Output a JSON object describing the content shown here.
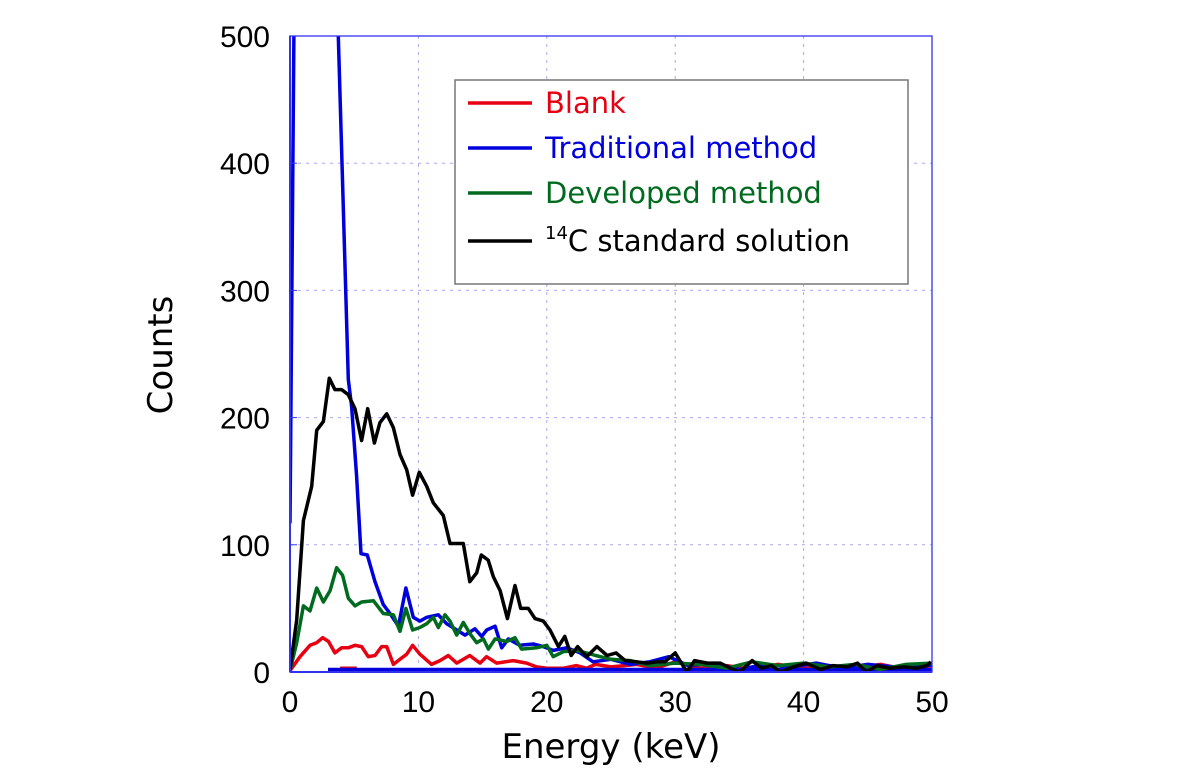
{
  "chart_data": {
    "type": "line",
    "title": "",
    "xlabel": "Energy (keV)",
    "ylabel": "Counts",
    "xlim": [
      0,
      50
    ],
    "ylim": [
      0,
      500
    ],
    "xticks": [
      "0",
      "10",
      "20",
      "30",
      "40",
      "50"
    ],
    "yticks": [
      "0",
      "100",
      "200",
      "300",
      "400",
      "500"
    ],
    "grid": true,
    "legend_position": "top-right",
    "axis_color": "#3333ee",
    "grid_color": "#aaaaee",
    "series": [
      {
        "name": "Blank",
        "color": "#e60012",
        "points": [
          [
            0,
            1
          ],
          [
            0.78,
            12
          ],
          [
            1.56,
            21
          ],
          [
            2.08,
            23
          ],
          [
            2.55,
            27
          ],
          [
            3.0,
            24
          ],
          [
            3.5,
            15
          ],
          [
            4.02,
            19
          ],
          [
            4.54,
            19
          ],
          [
            5.06,
            21
          ],
          [
            5.58,
            20
          ],
          [
            6.1,
            12
          ],
          [
            6.62,
            13
          ],
          [
            7.14,
            20
          ],
          [
            7.53,
            20
          ],
          [
            8.05,
            6
          ],
          [
            8.57,
            10
          ],
          [
            9.09,
            14
          ],
          [
            9.55,
            21
          ],
          [
            10.12,
            14
          ],
          [
            11.03,
            6
          ],
          [
            11.68,
            9
          ],
          [
            12.33,
            13
          ],
          [
            12.98,
            7
          ],
          [
            14.0,
            13
          ],
          [
            14.8,
            7
          ],
          [
            15.3,
            12
          ],
          [
            16.1,
            7
          ],
          [
            17.39,
            9
          ],
          [
            18.43,
            7
          ],
          [
            19.2,
            4
          ],
          [
            20.0,
            3
          ],
          [
            21.3,
            3
          ],
          [
            22.3,
            5
          ],
          [
            23.1,
            3
          ],
          [
            23.8,
            6
          ],
          [
            25,
            4
          ],
          [
            27,
            6
          ],
          [
            28.5,
            3
          ],
          [
            30,
            8
          ],
          [
            32,
            3
          ],
          [
            34,
            5
          ],
          [
            36,
            2
          ],
          [
            38,
            6
          ],
          [
            40,
            3
          ],
          [
            42,
            5
          ],
          [
            44,
            3
          ],
          [
            46,
            6
          ],
          [
            48,
            2
          ],
          [
            50,
            5
          ],
          null,
          [
            3.9,
            3
          ],
          [
            5.2,
            3
          ]
        ]
      },
      {
        "name": "Traditional method",
        "color": "#0000dd",
        "points": [
          [
            0,
            117
          ],
          [
            0.3,
            500
          ],
          null,
          [
            3.76,
            500
          ],
          [
            4.54,
            230
          ],
          [
            4.8,
            209
          ],
          [
            5.19,
            154
          ],
          [
            5.53,
            93
          ],
          [
            6.02,
            92
          ],
          [
            6.62,
            71
          ],
          [
            7.27,
            53
          ],
          [
            7.79,
            46
          ],
          [
            8.44,
            36
          ],
          [
            9.03,
            66
          ],
          [
            9.6,
            43
          ],
          [
            10.12,
            40
          ],
          [
            10.65,
            43
          ],
          [
            11.55,
            45
          ],
          [
            12.2,
            38
          ],
          [
            12.98,
            33
          ],
          [
            13.63,
            29
          ],
          [
            14.4,
            34
          ],
          [
            14.93,
            28
          ],
          [
            15.32,
            33
          ],
          [
            15.97,
            36
          ],
          [
            16.49,
            19
          ],
          [
            17.0,
            26
          ],
          [
            17.9,
            21
          ],
          [
            18.95,
            22
          ],
          [
            19.73,
            20
          ],
          [
            20.5,
            17
          ],
          [
            21.55,
            19
          ],
          [
            22.6,
            15
          ],
          [
            23.6,
            8
          ],
          [
            25,
            10
          ],
          [
            26.5,
            6
          ],
          [
            28,
            8
          ],
          [
            29.5,
            12
          ],
          [
            31,
            5
          ],
          [
            33,
            7
          ],
          [
            35,
            2
          ],
          [
            37,
            6
          ],
          [
            39,
            4
          ],
          [
            41,
            7
          ],
          [
            43,
            3
          ],
          [
            45,
            6
          ],
          [
            47,
            4
          ],
          [
            49,
            6
          ],
          [
            50,
            5
          ],
          null,
          [
            2.96,
            2
          ],
          [
            50,
            2
          ]
        ]
      },
      {
        "name": "Developed method",
        "color": "#006b1f",
        "points": [
          [
            0,
            1
          ],
          [
            0.52,
            23
          ],
          [
            1.04,
            52
          ],
          [
            1.56,
            48
          ],
          [
            2.08,
            66
          ],
          [
            2.6,
            55
          ],
          [
            3.12,
            64
          ],
          [
            3.63,
            82
          ],
          [
            4.1,
            76
          ],
          [
            4.54,
            58
          ],
          [
            5.06,
            52
          ],
          [
            5.58,
            55
          ],
          [
            6.5,
            56
          ],
          [
            7.27,
            46
          ],
          [
            8.05,
            45
          ],
          [
            8.57,
            32
          ],
          [
            9.03,
            50
          ],
          [
            9.55,
            33
          ],
          [
            10.12,
            35
          ],
          [
            10.65,
            38
          ],
          [
            11.16,
            43
          ],
          [
            11.55,
            35
          ],
          [
            12.07,
            45
          ],
          [
            12.46,
            40
          ],
          [
            12.98,
            29
          ],
          [
            13.5,
            39
          ],
          [
            14.02,
            30
          ],
          [
            14.54,
            23
          ],
          [
            15.06,
            26
          ],
          [
            15.45,
            18
          ],
          [
            15.97,
            26
          ],
          [
            16.88,
            24
          ],
          [
            17.52,
            27
          ],
          [
            18.04,
            18
          ],
          [
            19.21,
            19
          ],
          [
            20.0,
            21
          ],
          [
            20.5,
            12
          ],
          [
            21.3,
            16
          ],
          [
            22.3,
            17
          ],
          [
            23.1,
            15
          ],
          [
            23.8,
            13
          ],
          [
            25,
            10
          ],
          [
            26.5,
            9
          ],
          [
            28,
            5
          ],
          [
            30,
            7
          ],
          [
            32,
            6
          ],
          [
            34,
            3
          ],
          [
            36,
            8
          ],
          [
            38,
            5
          ],
          [
            40,
            7
          ],
          [
            42,
            4
          ],
          [
            44,
            6
          ],
          [
            46,
            2
          ],
          [
            48,
            6
          ],
          [
            50,
            7
          ]
        ]
      },
      {
        "name": "14C standard solution",
        "name_sup": "14",
        "name_rest": "C standard solution",
        "color": "#000000",
        "points": [
          [
            0,
            2
          ],
          [
            0.52,
            41
          ],
          [
            1.04,
            119
          ],
          [
            1.69,
            146
          ],
          [
            2.08,
            190
          ],
          [
            2.6,
            197
          ],
          [
            3.06,
            231
          ],
          [
            3.5,
            222
          ],
          [
            4.02,
            222
          ],
          [
            4.54,
            218
          ],
          [
            5.06,
            207
          ],
          [
            5.58,
            182
          ],
          [
            6.05,
            207
          ],
          [
            6.57,
            180
          ],
          [
            7.0,
            196
          ],
          [
            7.53,
            203
          ],
          [
            8.05,
            192
          ],
          [
            8.57,
            171
          ],
          [
            9.09,
            159
          ],
          [
            9.55,
            139
          ],
          [
            10.07,
            157
          ],
          [
            10.65,
            146
          ],
          [
            11.16,
            133
          ],
          [
            11.94,
            123
          ],
          [
            12.46,
            101
          ],
          [
            13.5,
            101
          ],
          [
            14.0,
            71
          ],
          [
            14.54,
            78
          ],
          [
            14.9,
            92
          ],
          [
            15.44,
            88
          ],
          [
            15.83,
            75
          ],
          [
            16.36,
            64
          ],
          [
            16.93,
            42
          ],
          [
            17.52,
            68
          ],
          [
            17.97,
            50
          ],
          [
            18.56,
            50
          ],
          [
            19.08,
            42
          ],
          [
            19.73,
            40
          ],
          [
            20.25,
            33
          ],
          [
            20.9,
            20
          ],
          [
            21.4,
            28
          ],
          [
            21.9,
            13
          ],
          [
            22.4,
            20
          ],
          [
            23.1,
            12
          ],
          [
            23.9,
            20
          ],
          [
            24.7,
            13
          ],
          [
            25.4,
            15
          ],
          [
            26.1,
            9
          ],
          [
            27.0,
            8
          ],
          [
            27.8,
            7
          ],
          [
            28.6,
            8
          ],
          [
            29.2,
            8
          ],
          [
            30.0,
            15
          ],
          [
            30.9,
            0
          ],
          [
            31.5,
            9
          ],
          [
            32.5,
            7
          ],
          [
            33.5,
            7
          ],
          [
            34.3,
            3
          ],
          [
            35.0,
            0
          ],
          [
            36.0,
            9
          ],
          [
            36.7,
            3
          ],
          [
            37.5,
            5
          ],
          [
            38.2,
            0
          ],
          [
            39.2,
            4
          ],
          [
            40.2,
            7
          ],
          [
            41.3,
            2
          ],
          [
            42.3,
            5
          ],
          [
            43.4,
            4
          ],
          [
            44.2,
            7
          ],
          [
            44.9,
            0
          ],
          [
            45.7,
            5
          ],
          [
            46.7,
            3
          ],
          [
            47.8,
            4
          ],
          [
            48.8,
            3
          ],
          [
            49.6,
            5
          ],
          [
            49.9,
            8
          ]
        ]
      }
    ]
  }
}
